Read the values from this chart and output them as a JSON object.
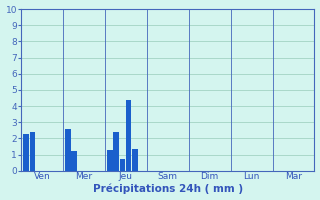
{
  "days": [
    "Ven",
    "Mer",
    "Jeu",
    "Sam",
    "Dim",
    "Lun",
    "Mar"
  ],
  "bar_data": [
    {
      "label": "Ven",
      "bars": [
        2.3,
        2.4
      ]
    },
    {
      "label": "Mer",
      "bars": [
        2.6,
        1.2
      ]
    },
    {
      "label": "Jeu",
      "bars": [
        1.3,
        2.4,
        0.7,
        4.35,
        1.35
      ]
    },
    {
      "label": "Sam",
      "bars": []
    },
    {
      "label": "Dim",
      "bars": []
    },
    {
      "label": "Lun",
      "bars": []
    },
    {
      "label": "Mar",
      "bars": []
    }
  ],
  "bar_color": "#1a5fcc",
  "bg_color": "#d4f5ef",
  "grid_color": "#99ccbb",
  "axis_color": "#4466bb",
  "text_color": "#3355bb",
  "xlabel": "Précipitations 24h ( mm )",
  "ylim": [
    0,
    10
  ],
  "yticks": [
    0,
    1,
    2,
    3,
    4,
    5,
    6,
    7,
    8,
    9,
    10
  ],
  "figsize": [
    3.2,
    2.0
  ],
  "dpi": 100,
  "n_slots": 7,
  "sub_bar_width": 0.13
}
